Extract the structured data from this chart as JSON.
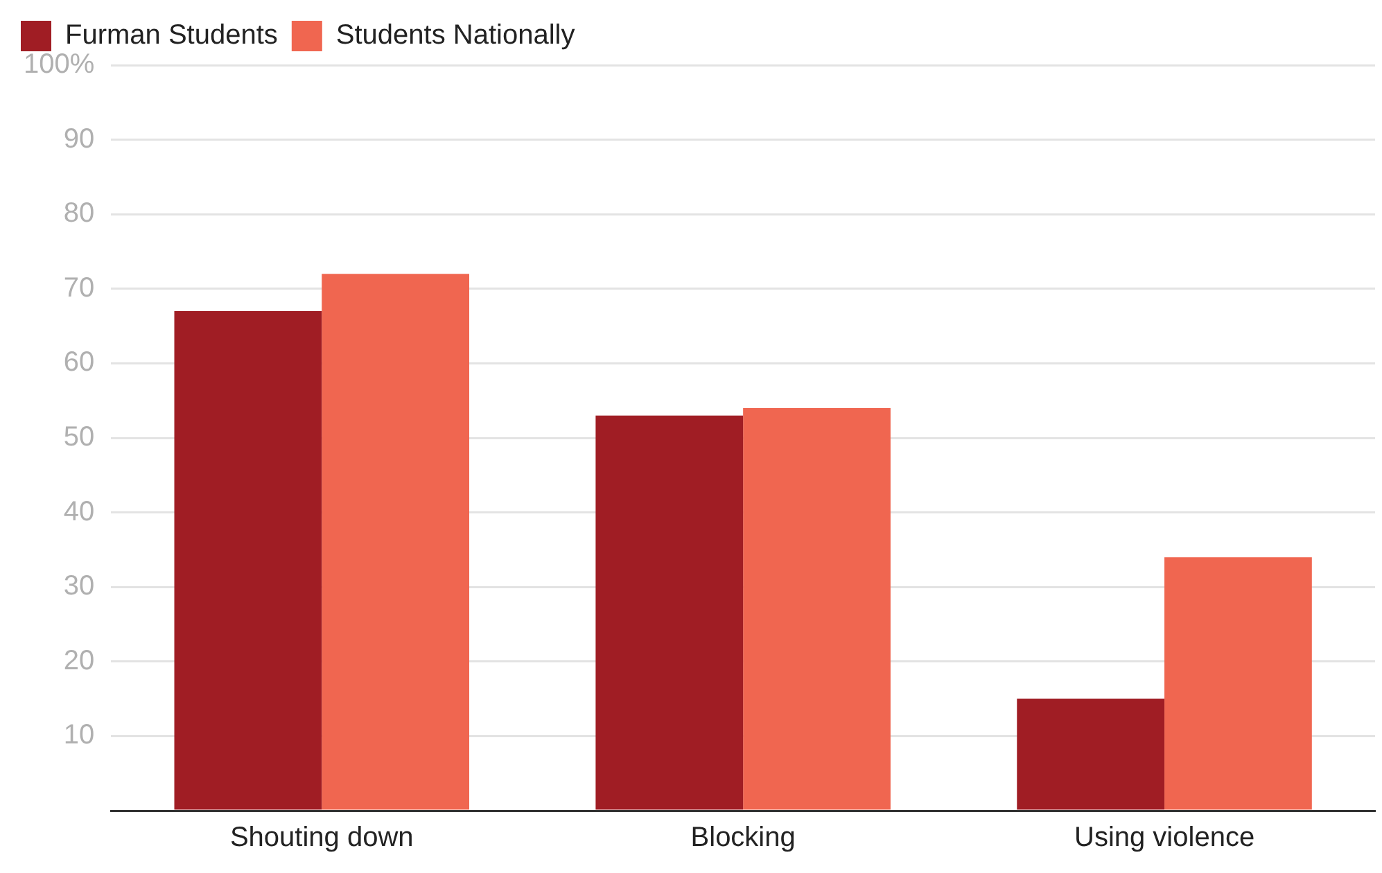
{
  "chart_data": {
    "type": "bar",
    "categories": [
      "Shouting down",
      "Blocking",
      "Using violence"
    ],
    "series": [
      {
        "name": "Furman Students",
        "color": "#a01d24",
        "values": [
          67,
          53,
          15
        ]
      },
      {
        "name": "Students Nationally",
        "color": "#f06650",
        "values": [
          72,
          54,
          34
        ]
      }
    ],
    "ylim": [
      0,
      100
    ],
    "yticks": [
      {
        "value": 0,
        "label": null
      },
      10,
      20,
      30,
      40,
      50,
      60,
      70,
      80,
      90,
      {
        "value": 100,
        "label": "100%"
      }
    ],
    "grid": "y",
    "legend": "top left"
  }
}
